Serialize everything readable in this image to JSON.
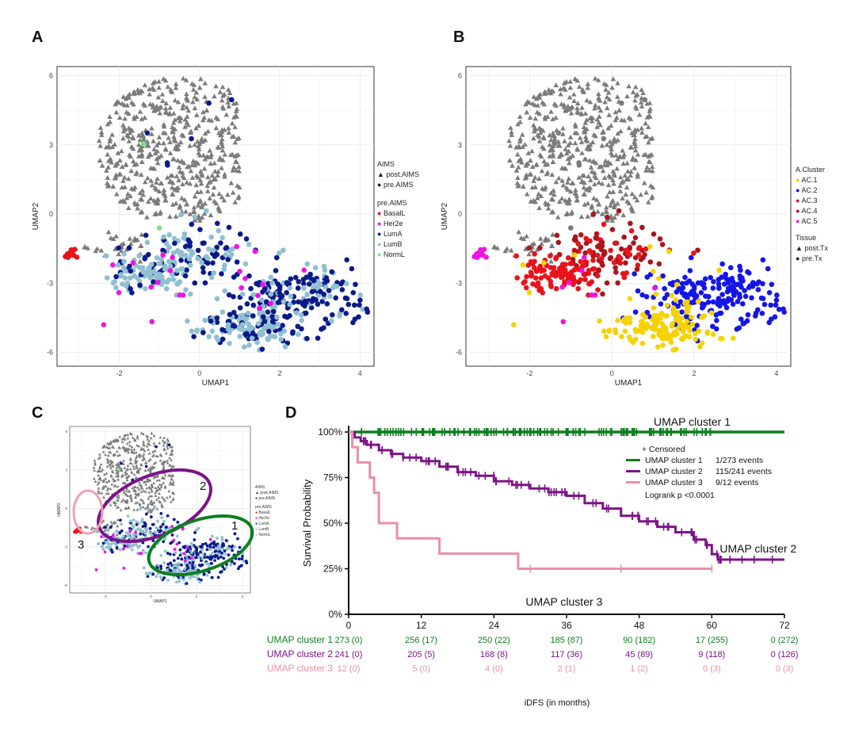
{
  "panels": {
    "a": {
      "letter": "A"
    },
    "b": {
      "letter": "B"
    },
    "c": {
      "letter": "C"
    },
    "d": {
      "letter": "D"
    }
  },
  "umap_axes": {
    "xlabel": "UMAP1",
    "ylabel": "UMAP2",
    "xticks": [
      "-2",
      "0",
      "2",
      "4"
    ],
    "yticks": [
      "6",
      "3",
      "0",
      "-3",
      "-6"
    ]
  },
  "legend_a": {
    "shape_title": "AIMS",
    "shapes": [
      "post.AIMS",
      "pre.AIMS"
    ],
    "color_title": "pre.AIMS",
    "colors": [
      {
        "label": "BasalL",
        "color": "#e8131b"
      },
      {
        "label": "Her2e",
        "color": "#ee14e4"
      },
      {
        "label": "LumA",
        "color": "#0b1a8a"
      },
      {
        "label": "LumB",
        "color": "#8fbfd0"
      },
      {
        "label": "NormL",
        "color": "#7ee08a"
      }
    ]
  },
  "legend_b": {
    "color_title": "A.Cluster",
    "colors": [
      {
        "label": "AC.1",
        "color": "#f6d300"
      },
      {
        "label": "AC.2",
        "color": "#1515e8"
      },
      {
        "label": "AC.3",
        "color": "#e8131b"
      },
      {
        "label": "AC.4",
        "color": "#a8161c"
      },
      {
        "label": "AC.5",
        "color": "#ee14e4"
      }
    ],
    "shape_title": "Tissue",
    "shapes": [
      "post.Tx",
      "pre.Tx"
    ]
  },
  "panel_c": {
    "cluster_labels": [
      "1",
      "2",
      "3"
    ],
    "ellipse_colors": {
      "1": "#0d7f1f",
      "2": "#7c1488",
      "3": "#f0a0b0"
    }
  },
  "chart_data": [
    {
      "type": "line",
      "title": "",
      "xlabel": "iDFS (in months)",
      "ylabel": "Survival Probability",
      "xlim": [
        0,
        72
      ],
      "ylim": [
        0,
        100
      ],
      "xticks": [
        "0",
        "12",
        "24",
        "36",
        "48",
        "60",
        "72"
      ],
      "yticks": [
        "0%",
        "25%",
        "50%",
        "75%",
        "100%"
      ],
      "censored_label": "+ Censored",
      "logrank": "Logrank p <0.0001",
      "series": [
        {
          "name": "UMAP cluster 1",
          "events": "1/273 events",
          "color": "#0d7f1f",
          "x": [
            0,
            72
          ],
          "y": [
            100,
            99.6
          ],
          "curve_label": "UMAP cluster 1",
          "risk": [
            "273 (0)",
            "256 (17)",
            "250 (22)",
            "185 (87)",
            "90 (182)",
            "17 (255)",
            "0 (272)"
          ]
        },
        {
          "name": "UMAP cluster 2",
          "events": "115/241 events",
          "color": "#7c1488",
          "x": [
            0,
            1,
            2,
            3,
            5,
            7,
            9,
            12,
            15,
            18,
            21,
            24,
            27,
            30,
            33,
            36,
            39,
            42,
            45,
            48,
            51,
            54,
            57,
            59,
            60,
            61,
            62,
            66,
            72
          ],
          "y": [
            100,
            97,
            95,
            93,
            90,
            88,
            86,
            84,
            81,
            78,
            76,
            73,
            71,
            69,
            67,
            65,
            61,
            58,
            54,
            51,
            48,
            45,
            41,
            38,
            33,
            30,
            30,
            30,
            30
          ],
          "curve_label": "UMAP cluster 2",
          "risk": [
            "241 (0)",
            "205 (5)",
            "168 (8)",
            "117 (36)",
            "45 (89)",
            "9 (118)",
            "0 (126)"
          ]
        },
        {
          "name": "UMAP cluster 3",
          "events": "9/12 events",
          "color": "#e890a8",
          "x": [
            0,
            0.6,
            1.5,
            3.5,
            4.2,
            5,
            8,
            12,
            15,
            28,
            60
          ],
          "y": [
            100,
            91.7,
            83.3,
            75,
            66.7,
            50,
            41.7,
            41.7,
            33.3,
            25,
            25
          ],
          "curve_label": "UMAP cluster 3",
          "risk": [
            "12 (0)",
            "5 (0)",
            "4 (0)",
            "2 (1)",
            "1 (2)",
            "0 (3)",
            "0 (3)"
          ]
        }
      ]
    }
  ]
}
